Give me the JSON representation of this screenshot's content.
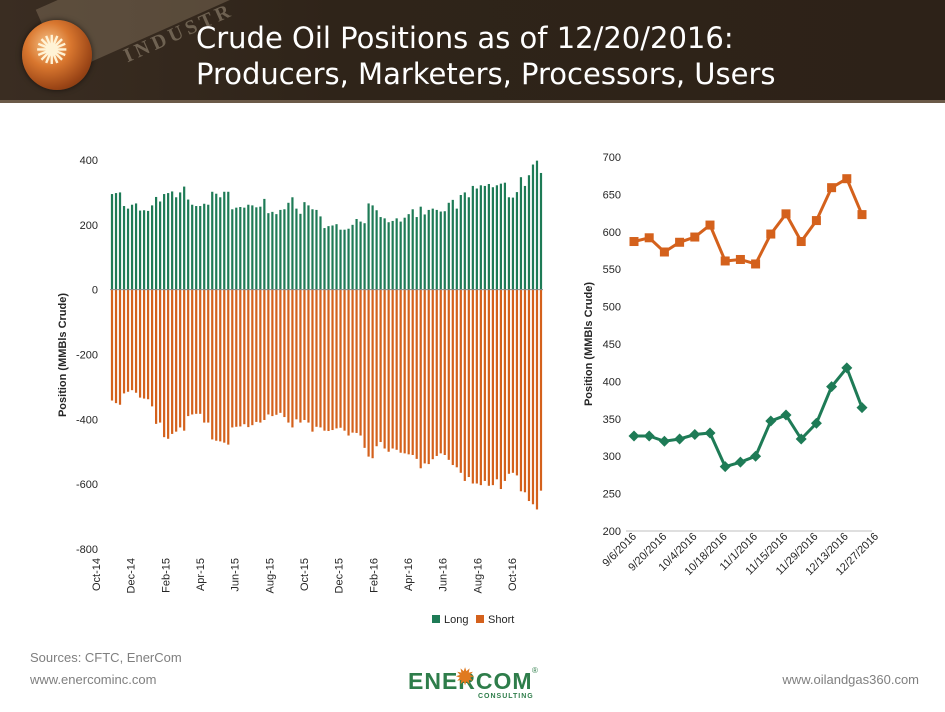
{
  "header": {
    "title_line1": "Crude Oil Positions as of 12/20/2016:",
    "title_line2": "Producers, Marketers, Processors, Users",
    "banner_text": "INDUSTR"
  },
  "footer": {
    "sources": "Sources: CFTC, EnerCom",
    "left_url": "www.enercominc.com",
    "right_url": "www.oilandgas360.com",
    "logo_word": "ENERCOM",
    "logo_mark": "®",
    "logo_sub": "CONSULTING"
  },
  "colors": {
    "long": "#1e7b56",
    "short": "#d4611c",
    "axis_text": "#262626",
    "grid": "#d9d9d9"
  },
  "chart_data": [
    {
      "type": "bar",
      "title": "",
      "ylabel": "Position (MMBls Crude)",
      "ylim": [
        -800,
        400
      ],
      "yticks": [
        400,
        200,
        0,
        -200,
        -400,
        -600,
        -800
      ],
      "x_tick_labels": [
        "Oct-14",
        "Dec-14",
        "Feb-15",
        "Apr-15",
        "Jun-15",
        "Aug-15",
        "Oct-15",
        "Dec-15",
        "Feb-16",
        "Apr-16",
        "Jun-16",
        "Aug-16",
        "Oct-16"
      ],
      "legend": [
        "Long",
        "Short"
      ],
      "legend_position": "bottom",
      "series": [
        {
          "name": "Long",
          "values": [
            295,
            298,
            300,
            258,
            250,
            262,
            266,
            244,
            245,
            243,
            260,
            286,
            272,
            295,
            298,
            303,
            285,
            300,
            318,
            278,
            262,
            258,
            258,
            265,
            262,
            302,
            296,
            285,
            302,
            302,
            248,
            253,
            255,
            253,
            262,
            260,
            254,
            256,
            280,
            236,
            240,
            233,
            246,
            248,
            268,
            285,
            250,
            234,
            270,
            260,
            248,
            246,
            226,
            190,
            196,
            198,
            202,
            185,
            185,
            188,
            200,
            218,
            210,
            205,
            266,
            260,
            245,
            224,
            220,
            208,
            212,
            220,
            210,
            222,
            233,
            248,
            224,
            256,
            232,
            246,
            250,
            246,
            241,
            242,
            268,
            277,
            250,
            292,
            300,
            285,
            320,
            312,
            322,
            320,
            326,
            316,
            322,
            327,
            330,
            285,
            284,
            301,
            347,
            320,
            353,
            386,
            398,
            360
          ]
        },
        {
          "name": "Short",
          "values": [
            -342,
            -350,
            -355,
            -320,
            -315,
            -310,
            -318,
            -333,
            -336,
            -338,
            -360,
            -414,
            -410,
            -455,
            -460,
            -445,
            -438,
            -425,
            -435,
            -390,
            -385,
            -383,
            -383,
            -410,
            -410,
            -462,
            -466,
            -468,
            -472,
            -478,
            -425,
            -423,
            -422,
            -415,
            -424,
            -418,
            -408,
            -410,
            -402,
            -385,
            -390,
            -386,
            -380,
            -393,
            -410,
            -425,
            -400,
            -410,
            -402,
            -410,
            -438,
            -423,
            -425,
            -435,
            -436,
            -433,
            -428,
            -426,
            -435,
            -450,
            -441,
            -442,
            -450,
            -488,
            -515,
            -520,
            -483,
            -470,
            -490,
            -500,
            -490,
            -494,
            -503,
            -505,
            -508,
            -510,
            -522,
            -551,
            -536,
            -538,
            -523,
            -513,
            -505,
            -510,
            -525,
            -541,
            -548,
            -565,
            -590,
            -578,
            -598,
            -598,
            -603,
            -590,
            -605,
            -603,
            -585,
            -615,
            -590,
            -568,
            -565,
            -573,
            -622,
            -625,
            -652,
            -662,
            -678,
            -620
          ]
        }
      ]
    },
    {
      "type": "line",
      "title": "",
      "ylabel": "Position (MMBls Crude)",
      "ylim": [
        200,
        700
      ],
      "yticks": [
        700,
        650,
        600,
        550,
        500,
        450,
        400,
        350,
        300,
        250,
        200
      ],
      "x_tick_labels": [
        "9/6/2016",
        "9/20/2016",
        "10/4/2016",
        "10/18/2016",
        "11/1/2016",
        "11/15/2016",
        "11/29/2016",
        "12/13/2016",
        "12/27/2016"
      ],
      "series": [
        {
          "name": "Short",
          "marker": "square",
          "values": [
            587,
            592,
            573,
            586,
            593,
            609,
            561,
            563,
            557,
            597,
            624,
            587,
            615,
            659,
            671,
            623
          ]
        },
        {
          "name": "Long",
          "marker": "diamond",
          "values": [
            327,
            327,
            320,
            323,
            329,
            331,
            286,
            292,
            300,
            347,
            355,
            323,
            344,
            393,
            418,
            365
          ]
        }
      ]
    }
  ]
}
